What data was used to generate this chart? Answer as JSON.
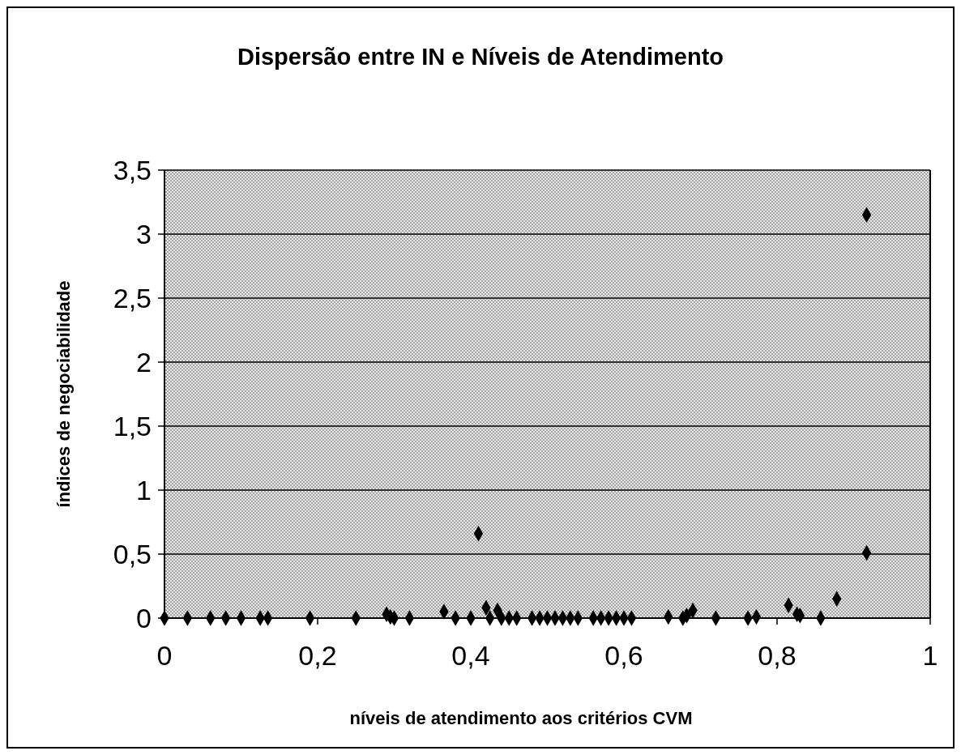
{
  "chart_data": {
    "type": "scatter",
    "title": "Dispersão entre IN e Níveis de Atendimento",
    "xlabel": "níveis de atendimento aos critérios CVM",
    "ylabel": "índices de negociabilidade",
    "x": [
      0,
      0.03,
      0.06,
      0.08,
      0.1,
      0.125,
      0.135,
      0.19,
      0.25,
      0.29,
      0.295,
      0.3,
      0.32,
      0.365,
      0.38,
      0.4,
      0.41,
      0.42,
      0.425,
      0.435,
      0.44,
      0.45,
      0.46,
      0.48,
      0.49,
      0.5,
      0.51,
      0.52,
      0.53,
      0.54,
      0.56,
      0.57,
      0.58,
      0.59,
      0.6,
      0.61,
      0.658,
      0.677,
      0.682,
      0.69,
      0.72,
      0.762,
      0.773,
      0.815,
      0.826,
      0.83,
      0.857,
      0.878,
      0.917,
      0.917
    ],
    "series": [
      {
        "color": "#000000",
        "values": [
          0,
          0,
          0,
          0,
          0,
          0,
          0,
          0,
          0,
          0.03,
          0.01,
          0,
          0,
          0.05,
          0,
          0,
          0.66,
          0.08,
          0,
          0.06,
          0,
          0,
          0,
          0,
          0,
          0,
          0,
          0,
          0,
          0,
          0,
          0,
          0,
          0,
          0,
          0,
          0.01,
          0,
          0.02,
          0.06,
          0,
          0,
          0.01,
          0.1,
          0.03,
          0.02,
          0,
          0.15,
          0.51,
          3.15
        ]
      }
    ],
    "xlim": [
      0,
      1
    ],
    "xticks": [
      0,
      {
        "value": 0.2,
        "label": "0,2"
      },
      {
        "value": 0.4,
        "label": "0,4"
      },
      {
        "value": 0.6,
        "label": "0,6"
      },
      {
        "value": 0.8,
        "label": "0,8"
      },
      1
    ],
    "ylim": [
      0,
      3.5
    ],
    "yticks": [
      0,
      {
        "value": 0.5,
        "label": "0,5"
      },
      1,
      {
        "value": 1.5,
        "label": "1,5"
      },
      2,
      {
        "value": 2.5,
        "label": "2,5"
      },
      3,
      {
        "value": 3.5,
        "label": "3,5"
      }
    ],
    "grid": "y",
    "marker": "diamond"
  }
}
